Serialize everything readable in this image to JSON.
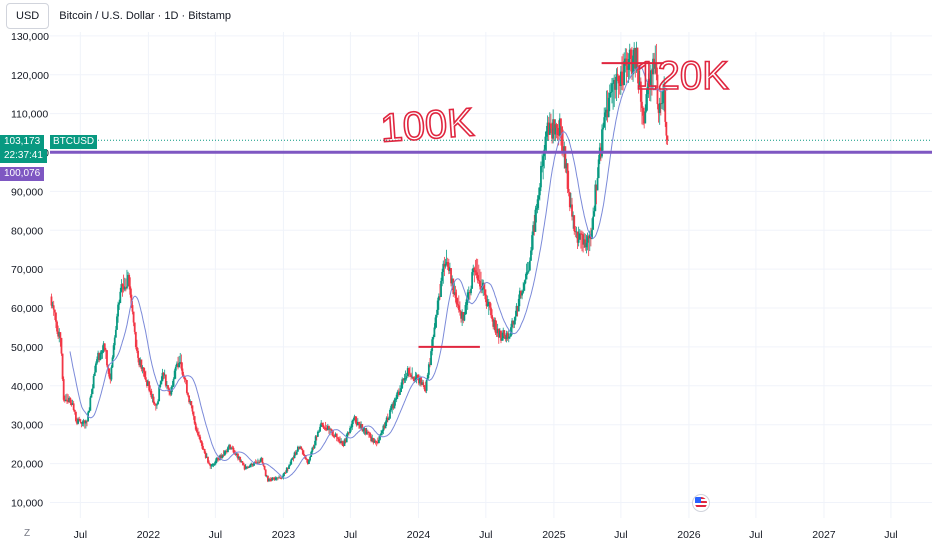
{
  "header": {
    "currency_button": "USD",
    "title": "Bitcoin / U.S. Dollar · 1D · Bitstamp"
  },
  "price_tags": {
    "last_price": "103,173",
    "symbol": "BTCUSD",
    "countdown": "22:37:41",
    "line_price": "100,076"
  },
  "annotations": {
    "label_100k": "100K",
    "label_120k": "120K"
  },
  "bottom": {
    "z_label": "Z"
  },
  "colors": {
    "up": "#089981",
    "down": "#f23645",
    "ma": "#7b8ad9",
    "support_line": "#7e57c2",
    "annotation": "#e0263f",
    "grid": "#f0f3fa"
  },
  "icons": {
    "flag": "us-flag-icon"
  },
  "chart_data": {
    "type": "candlestick",
    "title": "Bitcoin / U.S. Dollar · 1D · Bitstamp",
    "ylim": [
      6000,
      131000
    ],
    "y_ticks": [
      10000,
      20000,
      30000,
      40000,
      50000,
      60000,
      70000,
      80000,
      90000,
      100000,
      110000,
      120000,
      130000
    ],
    "y_tick_labels": [
      "10,000",
      "20,000",
      "30,000",
      "40,000",
      "50,000",
      "60,000",
      "70,000",
      "80,000",
      "90,000",
      "100,000",
      "110,000",
      "120,000",
      "130,000"
    ],
    "x_ticks": [
      {
        "date": "2021-07-01",
        "label": "Jul"
      },
      {
        "date": "2022-01-01",
        "label": "2022"
      },
      {
        "date": "2022-07-01",
        "label": "Jul"
      },
      {
        "date": "2023-01-01",
        "label": "2023"
      },
      {
        "date": "2023-07-01",
        "label": "Jul"
      },
      {
        "date": "2024-01-01",
        "label": "2024"
      },
      {
        "date": "2024-07-01",
        "label": "Jul"
      },
      {
        "date": "2025-01-01",
        "label": "2025"
      },
      {
        "date": "2025-07-01",
        "label": "Jul"
      },
      {
        "date": "2026-01-01",
        "label": "2026"
      },
      {
        "date": "2026-07-01",
        "label": "Jul"
      },
      {
        "date": "2027-01-01",
        "label": "2027"
      },
      {
        "date": "2027-07-01",
        "label": "Jul"
      }
    ],
    "xlim": [
      "2021-04-10",
      "2027-10-20"
    ],
    "price_path": [
      {
        "date": "2021-04-14",
        "close": 63000
      },
      {
        "date": "2021-05-12",
        "close": 50000
      },
      {
        "date": "2021-05-19",
        "close": 37000
      },
      {
        "date": "2021-06-10",
        "close": 36000
      },
      {
        "date": "2021-06-22",
        "close": 31000
      },
      {
        "date": "2021-07-20",
        "close": 30000
      },
      {
        "date": "2021-08-15",
        "close": 47000
      },
      {
        "date": "2021-09-07",
        "close": 50000
      },
      {
        "date": "2021-09-21",
        "close": 41000
      },
      {
        "date": "2021-10-20",
        "close": 65000
      },
      {
        "date": "2021-11-10",
        "close": 68000
      },
      {
        "date": "2021-12-04",
        "close": 48000
      },
      {
        "date": "2022-01-24",
        "close": 34000
      },
      {
        "date": "2022-02-10",
        "close": 44000
      },
      {
        "date": "2022-03-01",
        "close": 38000
      },
      {
        "date": "2022-03-28",
        "close": 47500
      },
      {
        "date": "2022-05-09",
        "close": 30000
      },
      {
        "date": "2022-06-18",
        "close": 19000
      },
      {
        "date": "2022-08-12",
        "close": 24500
      },
      {
        "date": "2022-09-20",
        "close": 19000
      },
      {
        "date": "2022-11-04",
        "close": 21000
      },
      {
        "date": "2022-11-21",
        "close": 15800
      },
      {
        "date": "2023-01-01",
        "close": 16600
      },
      {
        "date": "2023-02-15",
        "close": 24500
      },
      {
        "date": "2023-03-10",
        "close": 20000
      },
      {
        "date": "2023-04-14",
        "close": 30500
      },
      {
        "date": "2023-06-15",
        "close": 25000
      },
      {
        "date": "2023-07-13",
        "close": 31500
      },
      {
        "date": "2023-09-11",
        "close": 25000
      },
      {
        "date": "2023-10-24",
        "close": 34500
      },
      {
        "date": "2023-12-05",
        "close": 44000
      },
      {
        "date": "2024-01-23",
        "close": 39500
      },
      {
        "date": "2024-03-14",
        "close": 73000
      },
      {
        "date": "2024-05-01",
        "close": 57000
      },
      {
        "date": "2024-06-05",
        "close": 71000
      },
      {
        "date": "2024-08-05",
        "close": 53000
      },
      {
        "date": "2024-09-06",
        "close": 53000
      },
      {
        "date": "2024-10-29",
        "close": 72000
      },
      {
        "date": "2024-12-17",
        "close": 107000
      },
      {
        "date": "2025-01-21",
        "close": 106000
      },
      {
        "date": "2025-02-28",
        "close": 79000
      },
      {
        "date": "2025-04-08",
        "close": 76000
      },
      {
        "date": "2025-05-22",
        "close": 111000
      },
      {
        "date": "2025-07-14",
        "close": 122000
      },
      {
        "date": "2025-08-14",
        "close": 124000
      },
      {
        "date": "2025-09-01",
        "close": 108000
      },
      {
        "date": "2025-10-06",
        "close": 126000
      },
      {
        "date": "2025-10-11",
        "close": 110000
      },
      {
        "date": "2025-10-27",
        "close": 115000
      },
      {
        "date": "2025-11-04",
        "close": 103173
      }
    ],
    "moving_average_lag_days": 50,
    "horizontal_lines": [
      {
        "price": 100076,
        "label": "100,076",
        "color": "#7e57c2",
        "from": "chart-left",
        "to": "chart-right"
      },
      {
        "price": 103173,
        "label": "103,173",
        "style": "dotted"
      },
      {
        "price": 50000,
        "from": "2024-01-01",
        "to": "2024-06-15",
        "color": "#e0263f"
      },
      {
        "price": 123000,
        "from": "2025-05-10",
        "to": "2025-10-25",
        "color": "#e0263f"
      }
    ],
    "annotations": [
      {
        "text": "100K",
        "date": "2024-01-01",
        "price": 107000
      },
      {
        "text": "120K",
        "date": "2025-11-20",
        "price": 120000
      }
    ],
    "last_price": 103173,
    "legend": "none",
    "grid": true
  }
}
